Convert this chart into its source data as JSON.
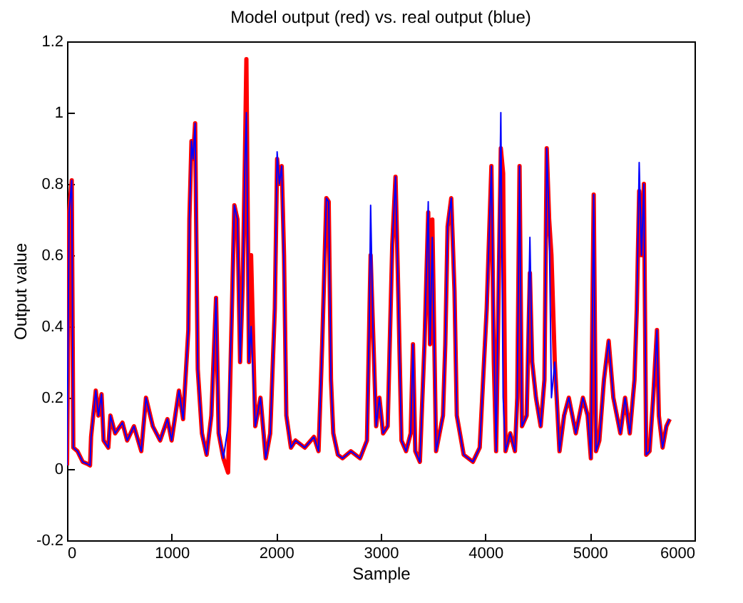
{
  "chart_data": {
    "type": "line",
    "title": "Model output (red) vs. real output (blue)",
    "xlabel": "Sample",
    "ylabel": "Output value",
    "xlim": [
      0,
      6000
    ],
    "ylim": [
      -0.2,
      1.2
    ],
    "xticks": [
      0,
      1000,
      2000,
      3000,
      4000,
      5000,
      6000
    ],
    "yticks": [
      -0.2,
      0,
      0.2,
      0.4,
      0.6,
      0.8,
      1,
      1.2
    ],
    "grid": false,
    "x": [
      0,
      20,
      45,
      60,
      100,
      150,
      190,
      220,
      230,
      275,
      300,
      330,
      350,
      395,
      415,
      460,
      530,
      575,
      640,
      710,
      755,
      820,
      890,
      960,
      1000,
      1070,
      1110,
      1160,
      1170,
      1190,
      1205,
      1225,
      1240,
      1250,
      1290,
      1335,
      1380,
      1425,
      1450,
      1495,
      1540,
      1575,
      1600,
      1630,
      1655,
      1680,
      1700,
      1715,
      1740,
      1760,
      1800,
      1850,
      1900,
      1943,
      1987,
      2009,
      2030,
      2053,
      2075,
      2097,
      2141,
      2185,
      2273,
      2361,
      2405,
      2440,
      2480,
      2502,
      2524,
      2546,
      2590,
      2634,
      2714,
      2802,
      2868,
      2890,
      2903,
      2925,
      2956,
      2987,
      3022,
      3066,
      3110,
      3141,
      3163,
      3198,
      3242,
      3286,
      3308,
      3330,
      3374,
      3418,
      3454,
      3471,
      3493,
      3529,
      3595,
      3617,
      3639,
      3674,
      3705,
      3727,
      3793,
      3881,
      3946,
      4013,
      4058,
      4081,
      4103,
      4148,
      4170,
      4193,
      4238,
      4283,
      4305,
      4327,
      4350,
      4395,
      4426,
      4448,
      4484,
      4529,
      4565,
      4587,
      4610,
      4632,
      4664,
      4709,
      4753,
      4798,
      4865,
      4933,
      4978,
      5009,
      5036,
      5058,
      5090,
      5134,
      5179,
      5224,
      5291,
      5336,
      5381,
      5426,
      5448,
      5471,
      5493,
      5516,
      5538,
      5570,
      5605,
      5641,
      5659,
      5695,
      5731,
      5763
    ],
    "series": [
      {
        "color": "#ff0000",
        "values": [
          0.01,
          0.72,
          0.81,
          0.06,
          0.05,
          0.02,
          0.015,
          0.01,
          0.09,
          0.22,
          0.15,
          0.21,
          0.08,
          0.06,
          0.15,
          0.1,
          0.13,
          0.08,
          0.12,
          0.05,
          0.2,
          0.12,
          0.08,
          0.14,
          0.08,
          0.22,
          0.14,
          0.39,
          0.7,
          0.92,
          0.87,
          0.97,
          0.55,
          0.28,
          0.1,
          0.04,
          0.15,
          0.48,
          0.1,
          0.03,
          -0.01,
          0.43,
          0.74,
          0.7,
          0.3,
          0.52,
          0.85,
          1.15,
          0.3,
          0.6,
          0.12,
          0.2,
          0.03,
          0.1,
          0.45,
          0.87,
          0.8,
          0.85,
          0.6,
          0.15,
          0.06,
          0.08,
          0.06,
          0.09,
          0.05,
          0.35,
          0.76,
          0.75,
          0.25,
          0.1,
          0.04,
          0.03,
          0.05,
          0.03,
          0.08,
          0.41,
          0.6,
          0.4,
          0.12,
          0.2,
          0.1,
          0.12,
          0.63,
          0.82,
          0.55,
          0.08,
          0.05,
          0.1,
          0.35,
          0.05,
          0.02,
          0.35,
          0.72,
          0.35,
          0.7,
          0.05,
          0.15,
          0.35,
          0.68,
          0.76,
          0.5,
          0.15,
          0.04,
          0.02,
          0.06,
          0.45,
          0.85,
          0.3,
          0.05,
          0.9,
          0.83,
          0.05,
          0.1,
          0.05,
          0.2,
          0.85,
          0.12,
          0.15,
          0.55,
          0.3,
          0.2,
          0.12,
          0.25,
          0.9,
          0.7,
          0.6,
          0.3,
          0.05,
          0.15,
          0.2,
          0.1,
          0.2,
          0.15,
          0.03,
          0.77,
          0.05,
          0.08,
          0.25,
          0.36,
          0.2,
          0.1,
          0.2,
          0.1,
          0.25,
          0.45,
          0.78,
          0.6,
          0.8,
          0.04,
          0.05,
          0.2,
          0.39,
          0.15,
          0.06,
          0.12,
          0.14
        ]
      },
      {
        "color": "#0000ff",
        "values": [
          0.01,
          0.72,
          0.81,
          0.06,
          0.05,
          0.02,
          0.015,
          0.01,
          0.09,
          0.22,
          0.15,
          0.21,
          0.08,
          0.06,
          0.15,
          0.1,
          0.13,
          0.08,
          0.12,
          0.05,
          0.2,
          0.12,
          0.08,
          0.14,
          0.08,
          0.22,
          0.14,
          0.39,
          0.7,
          0.92,
          0.87,
          0.97,
          0.6,
          0.28,
          0.1,
          0.04,
          0.15,
          0.48,
          0.1,
          0.03,
          0.12,
          0.43,
          0.74,
          0.7,
          0.3,
          0.52,
          0.85,
          1.0,
          0.3,
          0.4,
          0.12,
          0.2,
          0.03,
          0.1,
          0.45,
          0.89,
          0.8,
          0.85,
          0.55,
          0.15,
          0.06,
          0.08,
          0.06,
          0.09,
          0.05,
          0.35,
          0.76,
          0.75,
          0.25,
          0.1,
          0.04,
          0.03,
          0.05,
          0.03,
          0.08,
          0.41,
          0.74,
          0.4,
          0.12,
          0.2,
          0.1,
          0.12,
          0.63,
          0.82,
          0.55,
          0.08,
          0.05,
          0.1,
          0.35,
          0.05,
          0.02,
          0.35,
          0.75,
          0.35,
          0.65,
          0.05,
          0.15,
          0.35,
          0.68,
          0.76,
          0.5,
          0.15,
          0.04,
          0.02,
          0.06,
          0.45,
          0.85,
          0.35,
          0.05,
          1.0,
          0.2,
          0.05,
          0.1,
          0.05,
          0.2,
          0.85,
          0.12,
          0.15,
          0.65,
          0.3,
          0.2,
          0.12,
          0.25,
          0.9,
          0.7,
          0.2,
          0.3,
          0.05,
          0.15,
          0.2,
          0.1,
          0.2,
          0.15,
          0.03,
          0.77,
          0.05,
          0.08,
          0.25,
          0.36,
          0.2,
          0.1,
          0.2,
          0.1,
          0.25,
          0.45,
          0.86,
          0.6,
          0.8,
          0.04,
          0.05,
          0.2,
          0.39,
          0.15,
          0.06,
          0.12,
          0.14
        ]
      }
    ]
  }
}
